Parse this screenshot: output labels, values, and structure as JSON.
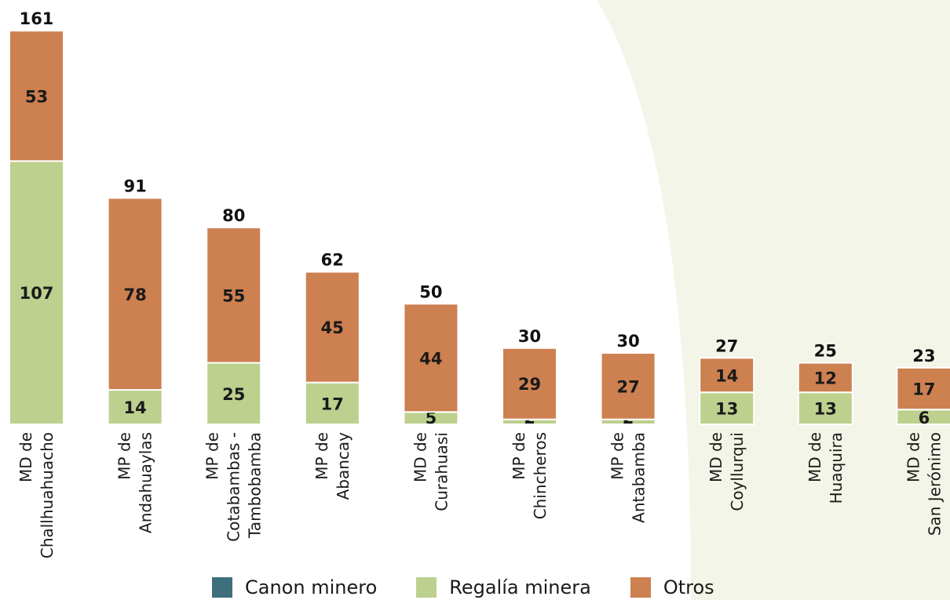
{
  "colors": {
    "canon_minero": "#3e6f7c",
    "regalia_minera": "#bdd08e",
    "otros": "#cd8050",
    "background_arc": "#f3f5e8"
  },
  "legend": [
    {
      "label": "Canon minero",
      "color_key": "canon_minero"
    },
    {
      "label": "Regalía minera",
      "color_key": "regalia_minera"
    },
    {
      "label": "Otros",
      "color_key": "otros"
    }
  ],
  "chart_data": {
    "type": "bar",
    "stacked": true,
    "categories": [
      [
        "MD de",
        "Challhuahuacho"
      ],
      [
        "MP de",
        "Andahuaylas"
      ],
      [
        "MP de",
        "Cotabambas -",
        "Tambobamba"
      ],
      [
        "MP de",
        "Abancay"
      ],
      [
        "MD de",
        "Curahuasi"
      ],
      [
        "MP de",
        "Chincheros"
      ],
      [
        "MP de",
        "Antabamba"
      ],
      [
        "MD de",
        "Coyllurqui"
      ],
      [
        "MD de",
        "Huaquira"
      ],
      [
        "MD de",
        "San Jerónimo"
      ]
    ],
    "series": [
      {
        "name": "Canon minero",
        "color_key": "canon_minero",
        "values": [
          0,
          0,
          0,
          0,
          0,
          0,
          0,
          0,
          0,
          0
        ]
      },
      {
        "name": "Regalía minera",
        "color_key": "regalia_minera",
        "values": [
          107,
          14,
          25,
          17,
          5,
          2,
          2,
          13,
          13,
          6
        ]
      },
      {
        "name": "Otros",
        "color_key": "otros",
        "values": [
          53,
          78,
          55,
          45,
          44,
          29,
          27,
          14,
          12,
          17
        ]
      }
    ],
    "totals": [
      161,
      91,
      80,
      62,
      50,
      30,
      30,
      27,
      25,
      23
    ],
    "title": "",
    "xlabel": "",
    "ylabel": "",
    "ylim": [
      0,
      161
    ],
    "grid": false,
    "legend_position": "bottom"
  }
}
